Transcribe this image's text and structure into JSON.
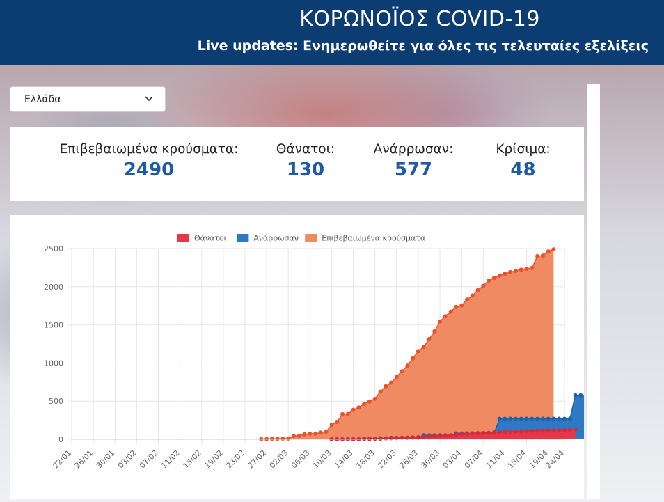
{
  "header": {
    "title": "ΚΟΡΩΝΟΪΟΣ COVID-19",
    "subtitle": "Live updates: Ενημερωθείτε για όλες τις τελευταίες εξελίξεις",
    "bg_color": "#0b3d73"
  },
  "country_select": {
    "value": "Ελλάδα",
    "icon": "chevron-down-icon"
  },
  "stats": [
    {
      "label": "Επιβεβαιωμένα κρούσματα:",
      "value": "2490"
    },
    {
      "label": "Θάνατοι:",
      "value": "130"
    },
    {
      "label": "Ανάρρωσαν:",
      "value": "577"
    },
    {
      "label": "Κρίσιμα:",
      "value": "48"
    }
  ],
  "chart_data": {
    "type": "area",
    "ylim": [
      0,
      2500
    ],
    "yticks": [
      "0",
      "500",
      "1000",
      "1500",
      "2000",
      "2500"
    ],
    "xticks": [
      "22/01",
      "26/01",
      "30/01",
      "03/02",
      "07/02",
      "11/02",
      "15/02",
      "19/02",
      "23/02",
      "27/02",
      "02/03",
      "06/03",
      "10/03",
      "14/03",
      "18/03",
      "22/03",
      "26/03",
      "30/03",
      "03/04",
      "07/04",
      "11/04",
      "15/04",
      "19/04",
      "24/04"
    ],
    "legend_position": "top",
    "grid": true,
    "series": [
      {
        "name": "Θάνατοι",
        "color": "#e8364a",
        "x_start": "10/03",
        "values": [
          0,
          0,
          0,
          1,
          1,
          3,
          4,
          5,
          6,
          6,
          13,
          15,
          17,
          20,
          22,
          26,
          28,
          32,
          38,
          43,
          49,
          50,
          53,
          63,
          68,
          73,
          79,
          81,
          83,
          86,
          90,
          93,
          99,
          101,
          102,
          105,
          108,
          110,
          113,
          114,
          116,
          116,
          119,
          121,
          125,
          130
        ]
      },
      {
        "name": "Ανάρρωσαν",
        "color": "#2f78c4",
        "x_start": "10/03",
        "values": [
          0,
          0,
          0,
          0,
          0,
          0,
          8,
          8,
          8,
          14,
          14,
          19,
          19,
          19,
          19,
          19,
          19,
          52,
          52,
          52,
          52,
          52,
          52,
          78,
          78,
          78,
          78,
          78,
          78,
          78,
          78,
          269,
          269,
          269,
          269,
          269,
          269,
          269,
          269,
          269,
          269,
          269,
          269,
          269,
          269,
          577,
          577,
          577
        ]
      },
      {
        "name": "Επιβεβαιωμένα κρούσματα",
        "color": "#f08a63",
        "x_start": "26/02",
        "values": [
          3,
          4,
          7,
          7,
          9,
          10,
          45,
          46,
          66,
          73,
          73,
          89,
          99,
          190,
          228,
          331,
          331,
          387,
          418,
          464,
          495,
          530,
          624,
          695,
          743,
          821,
          892,
          966,
          1061,
          1156,
          1212,
          1314,
          1415,
          1544,
          1613,
          1673,
          1735,
          1755,
          1832,
          1884,
          1955,
          2011,
          2081,
          2114,
          2145,
          2170,
          2192,
          2207,
          2224,
          2235,
          2245,
          2401,
          2408,
          2463,
          2490
        ]
      }
    ]
  }
}
